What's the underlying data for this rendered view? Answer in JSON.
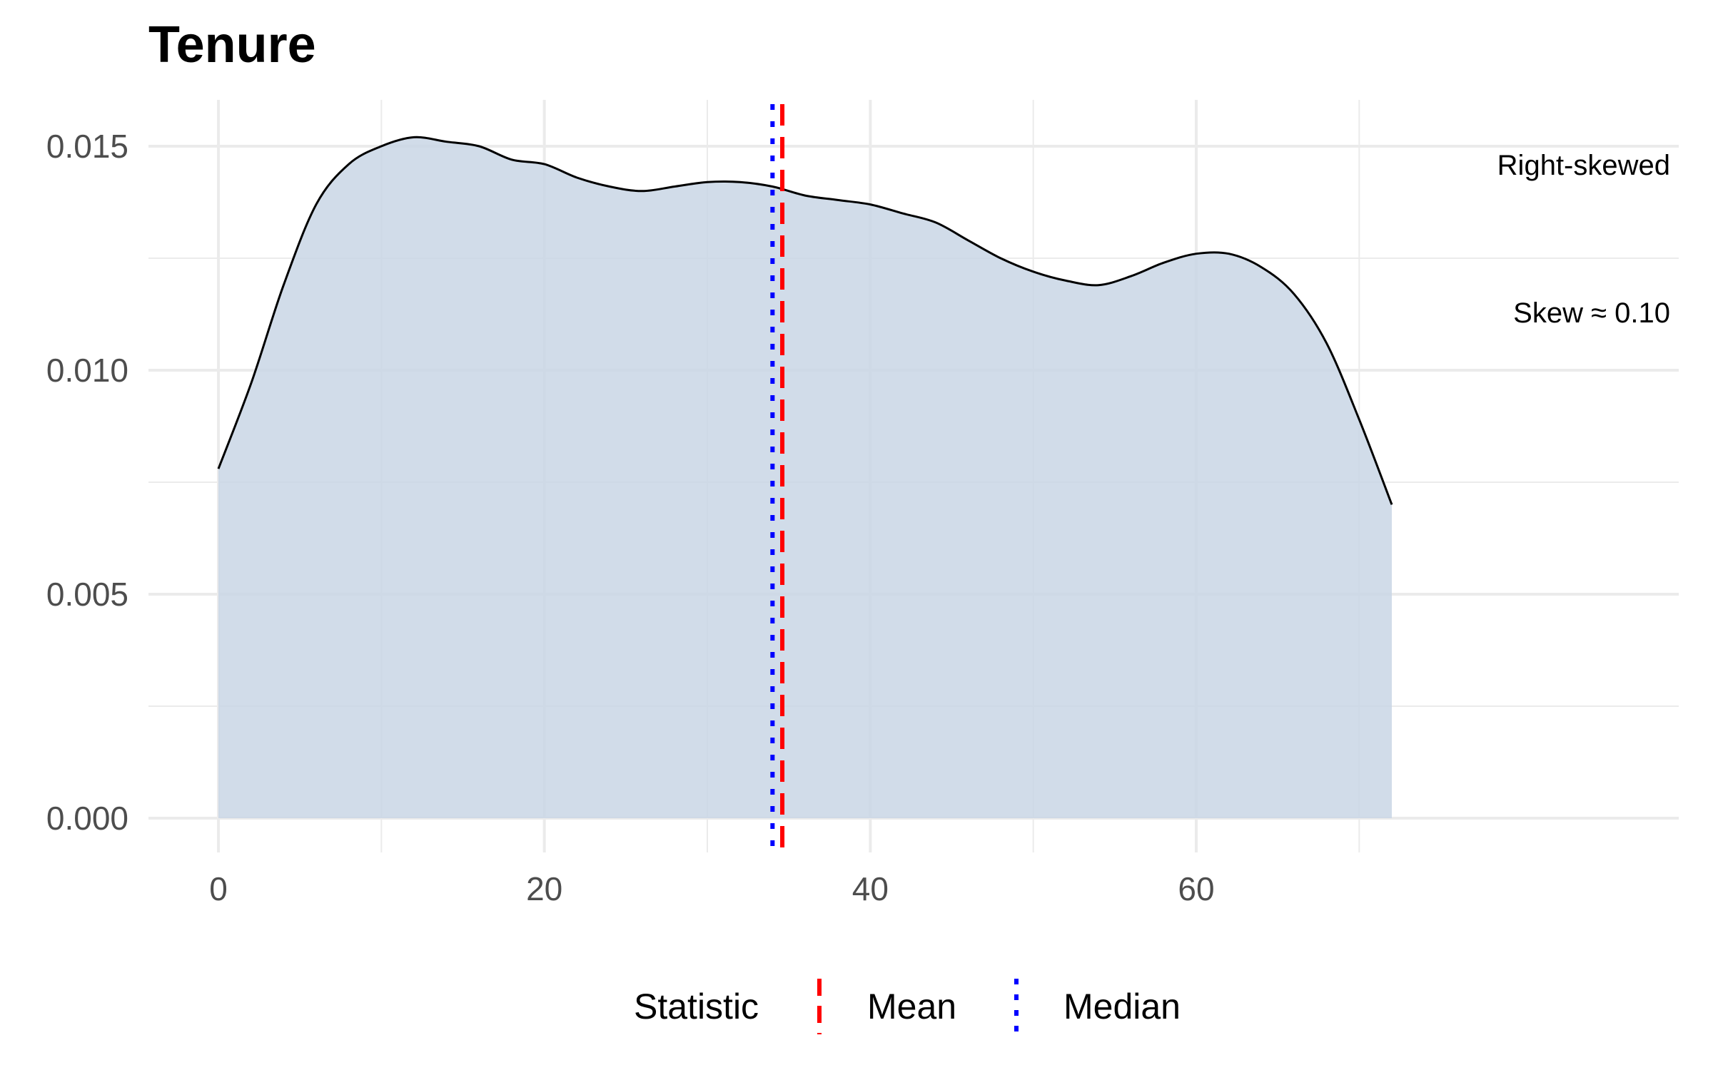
{
  "chart_data": {
    "type": "area",
    "title": "Tenure",
    "xlabel": "",
    "ylabel": "",
    "xlim": [
      -1.8,
      73.8
    ],
    "ylim": [
      0,
      0.016
    ],
    "x_ticks": [
      0,
      20,
      40,
      60
    ],
    "x_tick_labels": [
      "0",
      "20",
      "40",
      "60"
    ],
    "y_ticks": [
      0,
      0.005,
      0.01,
      0.015
    ],
    "y_tick_labels": [
      "0.000",
      "0.005",
      "0.010",
      "0.015"
    ],
    "grid": true,
    "series": [
      {
        "x": [
          0,
          2,
          4,
          6,
          8,
          10,
          12,
          14,
          16,
          18,
          20,
          22,
          24,
          26,
          28,
          30,
          32,
          34,
          36,
          38,
          40,
          42,
          44,
          46,
          48,
          50,
          52,
          54,
          56,
          58,
          60,
          62,
          64,
          66,
          68,
          70,
          72
        ],
        "values": [
          0.0078,
          0.0097,
          0.0119,
          0.0137,
          0.0146,
          0.015,
          0.0152,
          0.0151,
          0.015,
          0.0147,
          0.0146,
          0.0143,
          0.0141,
          0.014,
          0.0141,
          0.0142,
          0.0142,
          0.0141,
          0.0139,
          0.0138,
          0.0137,
          0.0135,
          0.0133,
          0.0129,
          0.0125,
          0.0122,
          0.012,
          0.0119,
          0.0121,
          0.0124,
          0.0126,
          0.0126,
          0.0123,
          0.0117,
          0.0106,
          0.0089,
          0.007
        ],
        "color": "#000000",
        "fill": "#c9d6e5"
      }
    ],
    "reference_lines": [
      {
        "name": "Mean",
        "x": 34.6,
        "color": "#ff0000",
        "style": "dashed"
      },
      {
        "name": "Median",
        "x": 34.0,
        "color": "#0000ff",
        "style": "dotted"
      }
    ],
    "annotations": [
      {
        "text": "Right-skewed"
      },
      {
        "text": "Skew ≈ 0.10"
      }
    ],
    "legend": {
      "title": "Statistic",
      "position": "bottom",
      "entries": [
        "Mean",
        "Median"
      ]
    }
  },
  "colors": {
    "grid": "#ebebeb",
    "fill": "#c9d6e5",
    "mean": "#ff0000",
    "median": "#0000ff",
    "tick_text": "#4d4d4d"
  }
}
